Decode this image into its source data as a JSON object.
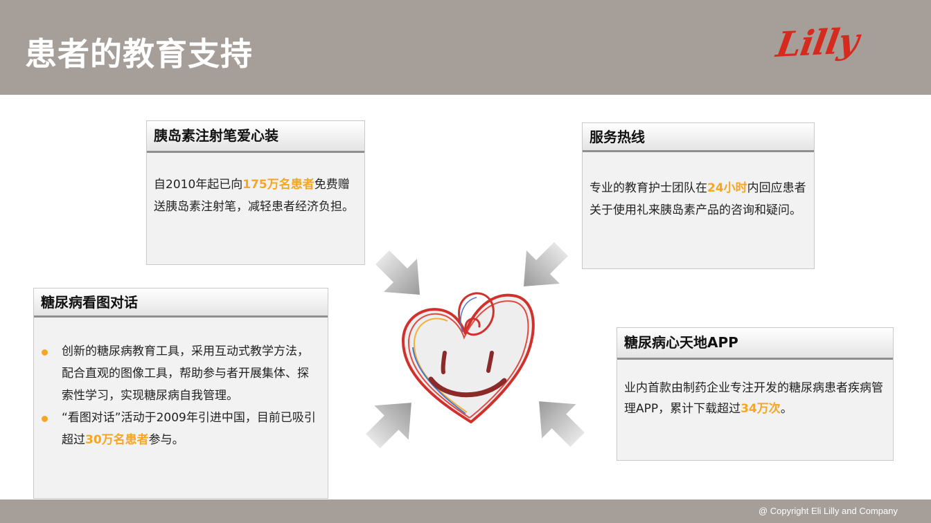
{
  "header": {
    "title": "患者的教育支持",
    "logo_text": "Lilly"
  },
  "cards": {
    "pen_kit": {
      "title": "胰岛素注射笔爱心装",
      "text_before": "自2010年起已向",
      "highlight": "175万名患者",
      "text_after": "免费赠送胰岛素注射笔，减轻患者经济负担。"
    },
    "hotline": {
      "title": "服务热线",
      "text_before": "专业的教育护士团队在",
      "highlight": "24小时",
      "text_after": "内回应患者关于使用礼来胰岛素产品的咨询和疑问。"
    },
    "conversation": {
      "title": "糖尿病看图对话",
      "bullet1": "创新的糖尿病教育工具，采用互动式教学方法，配合直观的图像工具，帮助参与者开展集体、探索性学习，实现糖尿病自我管理。",
      "bullet2_before": "“看图对话”活动于2009年引进中国，目前已吸引超过",
      "bullet2_highlight": "30万名患者",
      "bullet2_after": "参与。"
    },
    "app": {
      "title": "糖尿病心天地APP",
      "text_before": "业内首款由制药企业专注开发的糖尿病患者疾病管理APP，累计下载超过",
      "highlight": "34万次",
      "text_after": "。"
    }
  },
  "center_graphic": {
    "icon": "smiling-heart-icon"
  },
  "footer": {
    "copyright": "@ Copyright Eli Lilly and Company"
  },
  "colors": {
    "header_bg": "#a69e98",
    "highlight": "#f5a623",
    "logo_red": "#d52b1e",
    "card_bg": "#f2f2f2"
  }
}
